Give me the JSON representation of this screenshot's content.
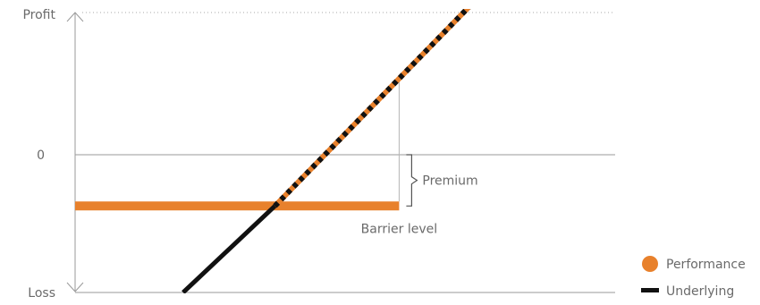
{
  "chart_data": {
    "type": "line",
    "title": "",
    "xlabel": "",
    "ylabel": "",
    "y_axis": {
      "top_label": "Profit",
      "zero_label": "0",
      "bottom_label": "Loss"
    },
    "annotations": {
      "premium": "Premium",
      "barrier": "Barrier level"
    },
    "series": [
      {
        "name": "Performance",
        "color": "#e8812c",
        "points": [
          [
            0,
            -0.32
          ],
          [
            0.37,
            -0.32
          ],
          [
            0.6,
            0.55
          ],
          [
            0.75,
            1.12
          ]
        ]
      },
      {
        "name": "Underlying",
        "color": "#111111",
        "points": [
          [
            0.2,
            -0.86
          ],
          [
            0.75,
            1.12
          ]
        ]
      }
    ],
    "barrier_x": 0.6,
    "xlim": [
      0,
      1
    ],
    "ylim": [
      -0.86,
      1.0
    ],
    "grid": false,
    "legend_position": "bottom-right"
  }
}
